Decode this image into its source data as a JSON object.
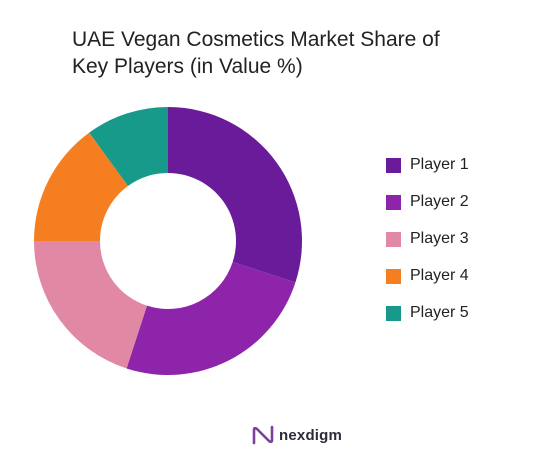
{
  "chart_data": {
    "type": "pie",
    "donut": true,
    "title_lines": [
      "UAE Vegan Cosmetics Market Share of",
      "Key Players (in Value %)"
    ],
    "categories": [
      "Player 1",
      "Player 2",
      "Player 3",
      "Player 4",
      "Player 5"
    ],
    "values": [
      30,
      25,
      20,
      15,
      10
    ],
    "unit": "%",
    "colors": [
      "#6a1b9a",
      "#8e24aa",
      "#e088a4",
      "#f57f20",
      "#179a8a"
    ],
    "legend_placement": "right",
    "start_angle": "top, clockwise"
  },
  "branding": {
    "logo_icon": "nexdigm-n-icon",
    "logo_text": "nexdigm",
    "logo_color": "#7b3fa0"
  }
}
